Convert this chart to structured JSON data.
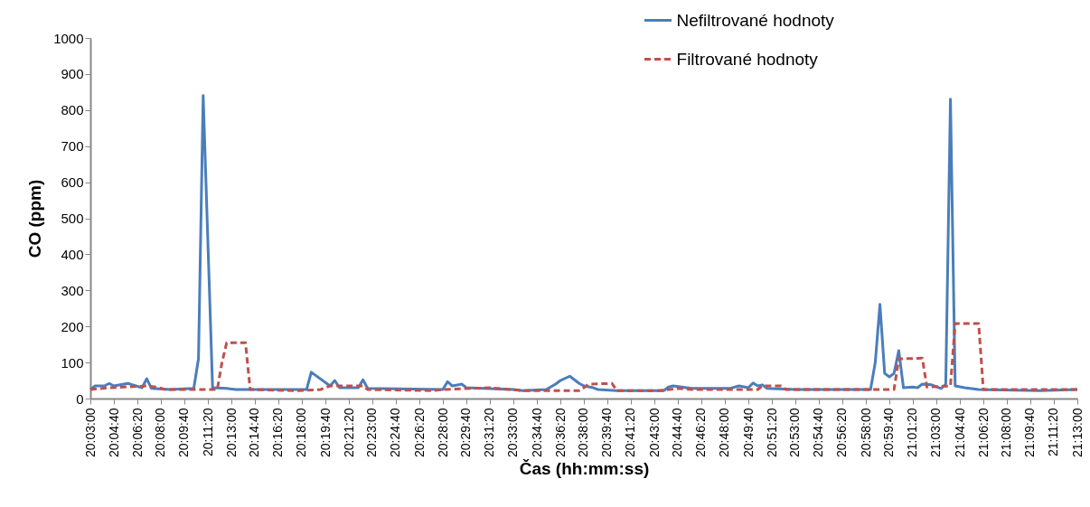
{
  "chart_data": {
    "type": "line",
    "xlabel": "Čas (hh:mm:ss)",
    "ylabel": "CO (ppm)",
    "legend": "top right",
    "xlim": [
      20.05,
      21.216667
    ],
    "ylim": [
      0,
      1000
    ],
    "yticks": [
      0,
      100,
      200,
      300,
      400,
      500,
      600,
      700,
      800,
      900,
      1000
    ],
    "xticks": [
      {
        "value": 20.05,
        "label": "20:03:00"
      },
      {
        "value": 20.077778,
        "label": "20:04:40"
      },
      {
        "value": 20.105556,
        "label": "20:06:20"
      },
      {
        "value": 20.133333,
        "label": "20:08:00"
      },
      {
        "value": 20.161111,
        "label": "20:09:40"
      },
      {
        "value": 20.188889,
        "label": "20:11:20"
      },
      {
        "value": 20.216667,
        "label": "20:13:00"
      },
      {
        "value": 20.244444,
        "label": "20:14:40"
      },
      {
        "value": 20.272222,
        "label": "20:16:20"
      },
      {
        "value": 20.3,
        "label": "20:18:00"
      },
      {
        "value": 20.327778,
        "label": "20:19:40"
      },
      {
        "value": 20.355556,
        "label": "20:21:20"
      },
      {
        "value": 20.383333,
        "label": "20:23:00"
      },
      {
        "value": 20.411111,
        "label": "20:24:40"
      },
      {
        "value": 20.438889,
        "label": "20:26:20"
      },
      {
        "value": 20.466667,
        "label": "20:28:00"
      },
      {
        "value": 20.494444,
        "label": "20:29:40"
      },
      {
        "value": 20.522222,
        "label": "20:31:20"
      },
      {
        "value": 20.55,
        "label": "20:33:00"
      },
      {
        "value": 20.577778,
        "label": "20:34:40"
      },
      {
        "value": 20.605556,
        "label": "20:36:20"
      },
      {
        "value": 20.633333,
        "label": "20:38:00"
      },
      {
        "value": 20.661111,
        "label": "20:39:40"
      },
      {
        "value": 20.688889,
        "label": "20:41:20"
      },
      {
        "value": 20.716667,
        "label": "20:43:00"
      },
      {
        "value": 20.744444,
        "label": "20:44:40"
      },
      {
        "value": 20.772222,
        "label": "20:46:20"
      },
      {
        "value": 20.8,
        "label": "20:48:00"
      },
      {
        "value": 20.827778,
        "label": "20:49:40"
      },
      {
        "value": 20.855556,
        "label": "20:51:20"
      },
      {
        "value": 20.883333,
        "label": "20:53:00"
      },
      {
        "value": 20.911111,
        "label": "20:54:40"
      },
      {
        "value": 20.938889,
        "label": "20:56:20"
      },
      {
        "value": 20.966667,
        "label": "20:58:00"
      },
      {
        "value": 20.994444,
        "label": "20:59:40"
      },
      {
        "value": 21.022222,
        "label": "21:01:20"
      },
      {
        "value": 21.05,
        "label": "21:03:00"
      },
      {
        "value": 21.077778,
        "label": "21:04:40"
      },
      {
        "value": 21.105556,
        "label": "21:06:20"
      },
      {
        "value": 21.133333,
        "label": "21:08:00"
      },
      {
        "value": 21.161111,
        "label": "21:09:40"
      },
      {
        "value": 21.188889,
        "label": "21:11:20"
      },
      {
        "value": 21.216667,
        "label": "21:13:00"
      }
    ],
    "series": [
      {
        "name": "Nefiltrované hodnoty",
        "color": "#4a7ebb",
        "line_style": "solid",
        "x": [
          20.05,
          20.055556,
          20.066667,
          20.072222,
          20.077778,
          20.094444,
          20.1,
          20.111111,
          20.116667,
          20.122222,
          20.144444,
          20.172222,
          20.177778,
          20.183333,
          20.194444,
          20.211111,
          20.222222,
          20.305556,
          20.311111,
          20.333333,
          20.338889,
          20.344444,
          20.366667,
          20.372222,
          20.377778,
          20.466667,
          20.472222,
          20.477778,
          20.488889,
          20.494444,
          20.55,
          20.561111,
          20.588889,
          20.6,
          20.605556,
          20.616667,
          20.627778,
          20.633333,
          20.644444,
          20.65,
          20.672222,
          20.727778,
          20.733333,
          20.738889,
          20.761111,
          20.805556,
          20.816667,
          20.827778,
          20.833333,
          20.838889,
          20.844444,
          20.85,
          20.883333,
          20.972222,
          20.977778,
          20.983333,
          20.988889,
          20.994444,
          21,
          21.005556,
          21.011111,
          21.022222,
          21.027778,
          21.033333,
          21.044444,
          21.055556,
          21.061111,
          21.066667,
          21.072222,
          21.083333,
          21.1,
          21.172222,
          21.216667
        ],
        "values": [
          25,
          35,
          35,
          42,
          35,
          42,
          38,
          30,
          55,
          28,
          25,
          28,
          110,
          840,
          30,
          28,
          25,
          25,
          73,
          35,
          50,
          30,
          30,
          52,
          28,
          25,
          47,
          35,
          40,
          30,
          25,
          22,
          25,
          40,
          50,
          62,
          42,
          35,
          30,
          25,
          22,
          22,
          32,
          35,
          28,
          28,
          35,
          30,
          43,
          35,
          38,
          28,
          25,
          25,
          100,
          261,
          70,
          60,
          70,
          133,
          30,
          32,
          30,
          40,
          38,
          28,
          40,
          830,
          35,
          30,
          25,
          22,
          25
        ]
      },
      {
        "name": "Filtrované hodnoty",
        "color": "#c0504d",
        "line_style": "dashed",
        "x": [
          20.05,
          20.072222,
          20.116667,
          20.127778,
          20.138889,
          20.2,
          20.205556,
          20.211111,
          20.233333,
          20.238889,
          20.294444,
          20.322222,
          20.333333,
          20.372222,
          20.377778,
          20.455556,
          20.466667,
          20.522222,
          20.561111,
          20.627778,
          20.633333,
          20.638889,
          20.666667,
          20.672222,
          20.722222,
          20.744444,
          20.761111,
          20.838889,
          20.844444,
          20.866667,
          20.872222,
          21,
          21.005556,
          21.033333,
          21.038889,
          21.066667,
          21.072222,
          21.1,
          21.105556,
          21.216667
        ],
        "values": [
          25,
          30,
          35,
          32,
          25,
          25,
          100,
          155,
          155,
          25,
          22,
          25,
          35,
          35,
          25,
          22,
          25,
          30,
          22,
          22,
          30,
          40,
          42,
          22,
          22,
          28,
          25,
          25,
          35,
          35,
          25,
          25,
          110,
          112,
          32,
          35,
          208,
          208,
          25,
          25
        ]
      }
    ]
  }
}
